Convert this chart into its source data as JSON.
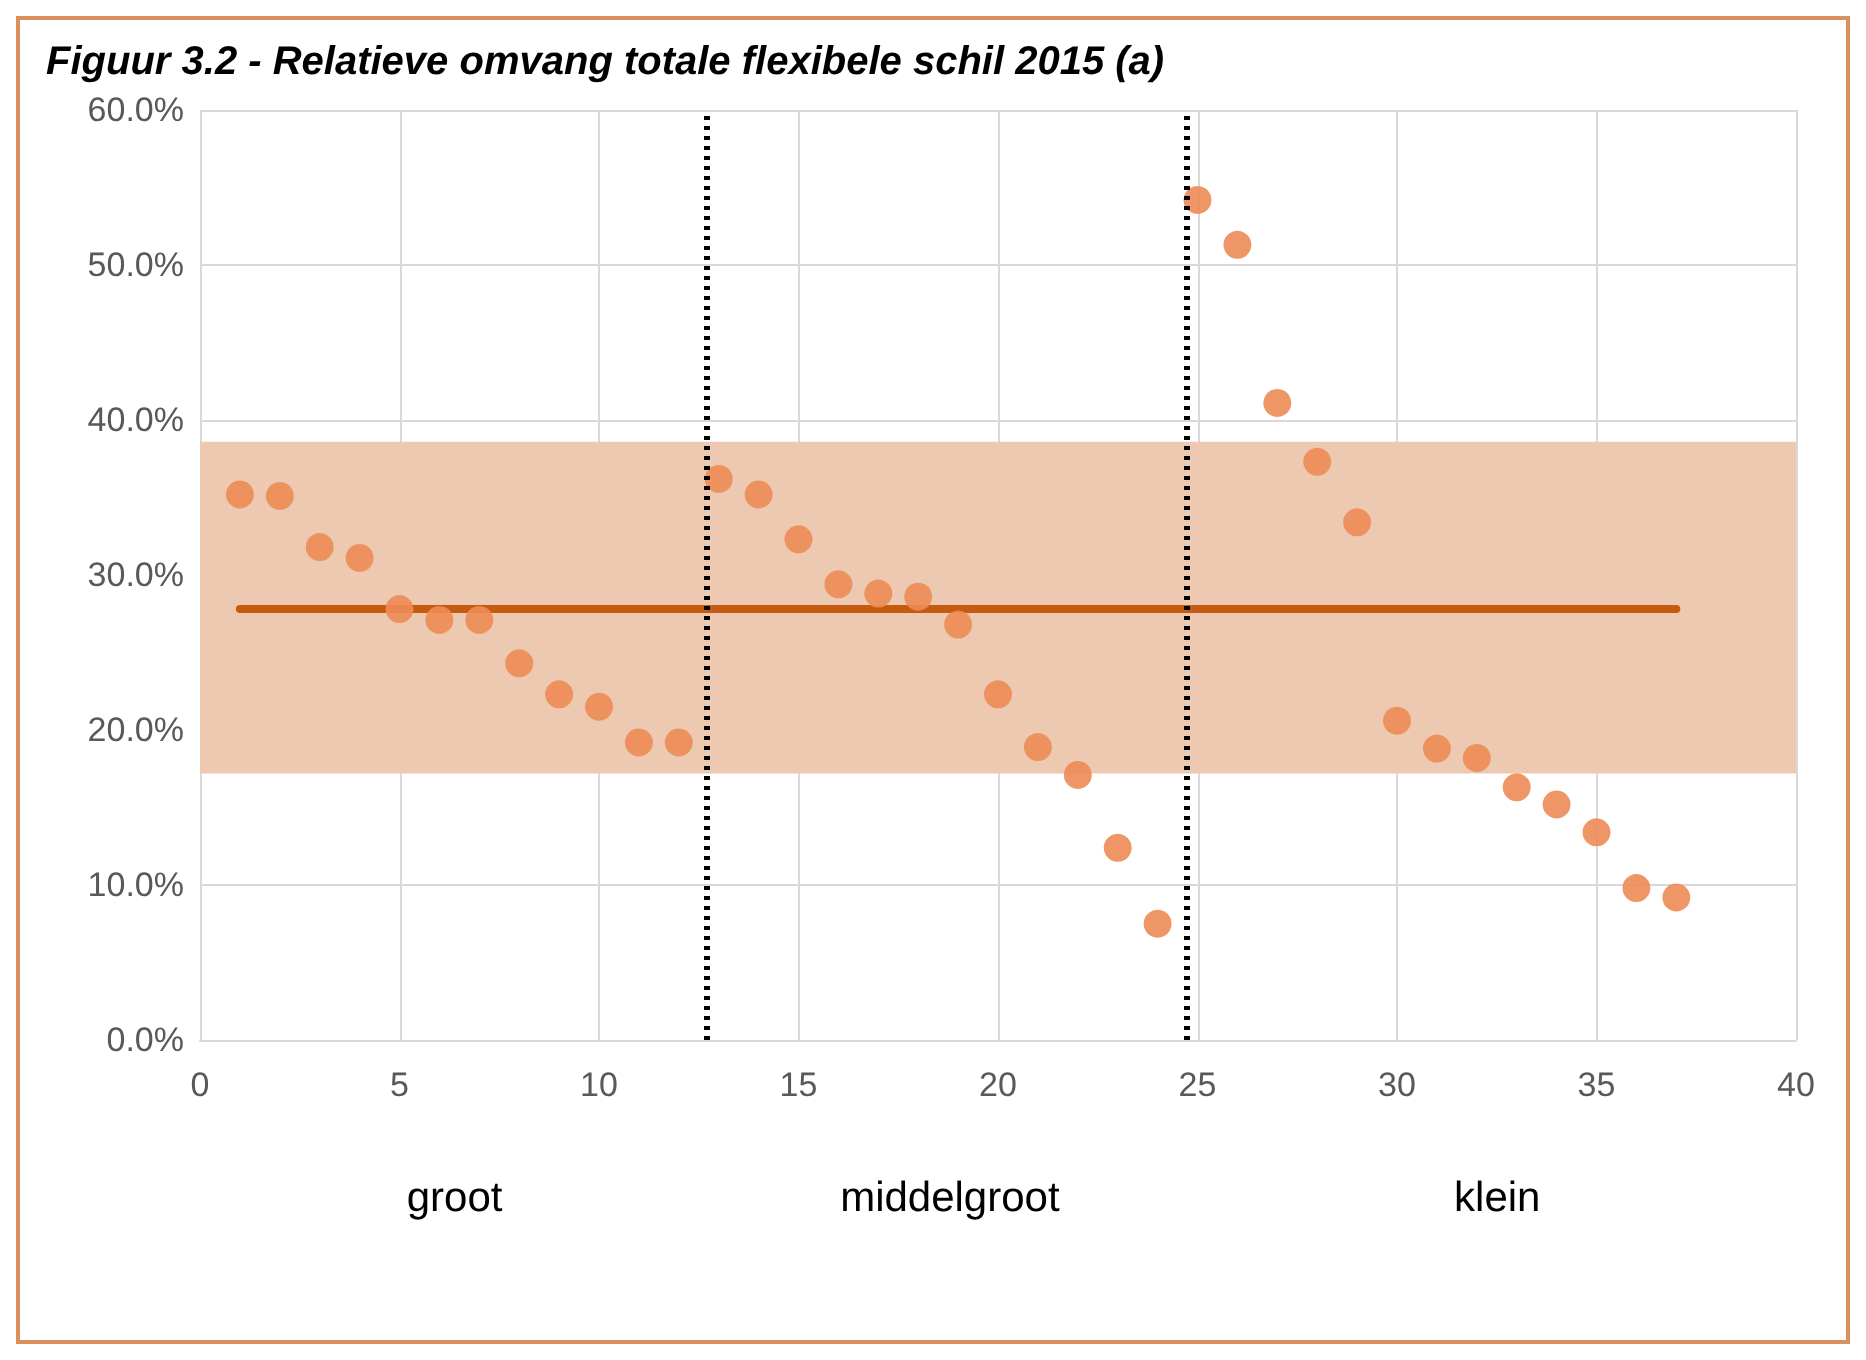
{
  "chart_data": {
    "type": "scatter",
    "title": "Figuur 3.2 - Relatieve omvang totale flexibele schil 2015 (a)",
    "series": [
      {
        "type": "scatter",
        "color": "#ed8b55",
        "x": [
          1,
          2,
          3,
          4,
          5,
          6,
          7,
          8,
          9,
          10,
          11,
          12,
          13,
          14,
          15,
          16,
          17,
          18,
          19,
          20,
          21,
          22,
          23,
          24,
          25,
          26,
          27,
          28,
          29,
          30,
          31,
          32,
          33,
          34,
          35,
          36,
          37
        ],
        "values": [
          35.2,
          35.1,
          31.8,
          31.1,
          27.8,
          27.1,
          27.1,
          24.3,
          22.3,
          21.5,
          19.2,
          19.2,
          36.2,
          35.2,
          32.3,
          29.4,
          28.8,
          28.6,
          26.8,
          22.3,
          18.9,
          17.1,
          12.4,
          7.5,
          54.2,
          51.3,
          41.1,
          37.3,
          33.4,
          20.6,
          18.8,
          18.2,
          16.3,
          15.2,
          13.4,
          9.8,
          9.2
        ]
      },
      {
        "type": "line",
        "color": "#c55a11",
        "marker": "none",
        "x": [
          1,
          37
        ],
        "values": [
          27.8,
          27.8
        ]
      }
    ],
    "xlim": [
      0,
      40
    ],
    "xticks": [
      0,
      5,
      10,
      15,
      20,
      25,
      30,
      35,
      40
    ],
    "ylim": [
      0,
      60
    ],
    "yticks": [
      {
        "value": 0,
        "label": "0.0%"
      },
      {
        "value": 10,
        "label": "10.0%"
      },
      {
        "value": 20,
        "label": "20.0%"
      },
      {
        "value": 30,
        "label": "30.0%"
      },
      {
        "value": 40,
        "label": "40.0%"
      },
      {
        "value": 50,
        "label": "50.0%"
      },
      {
        "value": 60,
        "label": "60.0%"
      }
    ],
    "bands": [
      {
        "axis": "y",
        "from": 17.2,
        "to": 38.6,
        "color": "#ecc9b0"
      }
    ],
    "ref_lines": [
      {
        "axis": "x",
        "value": 12.7,
        "color": "#000000",
        "line_style": "dotted"
      },
      {
        "axis": "x",
        "value": 24.7,
        "color": "#000000",
        "line_style": "dotted"
      }
    ],
    "annotations": [
      "groot",
      "middelgroot",
      "klein"
    ],
    "grid": true,
    "marker": "circle"
  }
}
